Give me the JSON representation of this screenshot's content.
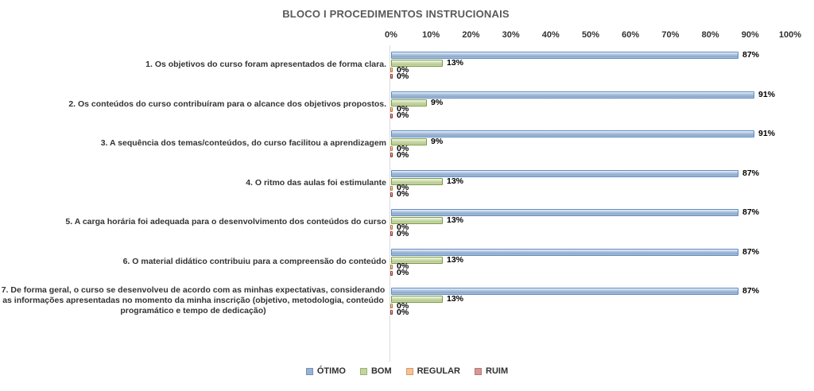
{
  "title": "BLOCO I PROCEDIMENTOS INSTRUCIONAIS",
  "colors": {
    "axis_line": "#D9D9D9",
    "title_text": "#595959",
    "label_text": "#303030",
    "data_label_text": "#000000"
  },
  "chart_data": {
    "type": "bar",
    "orientation": "horizontal",
    "title": "BLOCO I PROCEDIMENTOS INSTRUCIONAIS",
    "xlabel": "",
    "ylabel": "",
    "xlim": [
      0,
      100
    ],
    "x_ticks": [
      "0%",
      "10%",
      "20%",
      "30%",
      "40%",
      "50%",
      "60%",
      "70%",
      "80%",
      "90%",
      "100%"
    ],
    "grid": false,
    "data_labels": true,
    "legend_position": "bottom",
    "categories": [
      "1. Os objetivos do curso foram apresentados de forma clara.",
      "2. Os conteúdos do curso contribuíram para o alcance dos objetivos propostos.",
      "3. A sequência dos temas/conteúdos, do curso facilitou a aprendizagem",
      "4. O ritmo das aulas foi estimulante",
      "5. A carga horária foi adequada para o desenvolvimento dos conteúdos do curso",
      "6. O material didático contribuiu para a compreensão do conteúdo",
      "7. De forma geral, o curso se desenvolveu de acordo com as minhas expectativas, considerando as informações apresentadas no momento da minha inscrição (objetivo, metodologia, conteúdo programático e tempo de dedicação)"
    ],
    "series": [
      {
        "name": "ÓTIMO",
        "color": "#95B3D7",
        "border": "#5F8AC0",
        "values": [
          87,
          91,
          91,
          87,
          87,
          87,
          87
        ]
      },
      {
        "name": "BOM",
        "color": "#C3D69B",
        "border": "#7A9A40",
        "values": [
          13,
          9,
          9,
          13,
          13,
          13,
          13
        ]
      },
      {
        "name": "REGULAR",
        "color": "#FAC08F",
        "border": "#B5793C",
        "values": [
          0,
          0,
          0,
          0,
          0,
          0,
          0
        ]
      },
      {
        "name": "RUIM",
        "color": "#D99694",
        "border": "#8E3A38",
        "values": [
          0,
          0,
          0,
          0,
          0,
          0,
          0
        ]
      }
    ]
  }
}
